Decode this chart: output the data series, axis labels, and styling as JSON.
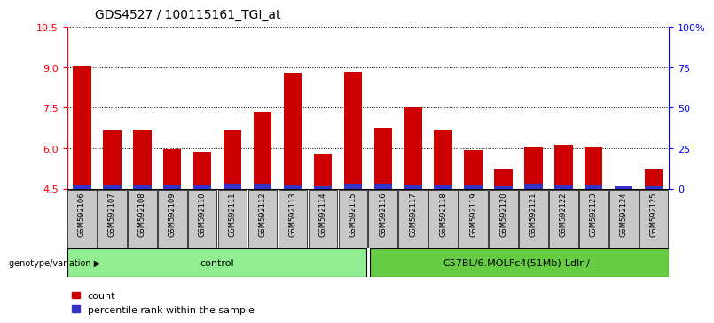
{
  "title": "GDS4527 / 100115161_TGI_at",
  "samples": [
    "GSM592106",
    "GSM592107",
    "GSM592108",
    "GSM592109",
    "GSM592110",
    "GSM592111",
    "GSM592112",
    "GSM592113",
    "GSM592114",
    "GSM592115",
    "GSM592116",
    "GSM592117",
    "GSM592118",
    "GSM592119",
    "GSM592120",
    "GSM592121",
    "GSM592122",
    "GSM592123",
    "GSM592124",
    "GSM592125"
  ],
  "red_values": [
    9.05,
    6.65,
    6.7,
    5.98,
    5.88,
    6.65,
    7.35,
    8.8,
    5.82,
    8.82,
    6.75,
    7.5,
    6.7,
    5.95,
    5.2,
    6.05,
    6.15,
    6.02,
    4.6,
    5.2
  ],
  "blue_values": [
    0.13,
    0.13,
    0.13,
    0.13,
    0.13,
    0.18,
    0.18,
    0.13,
    0.1,
    0.18,
    0.18,
    0.13,
    0.13,
    0.13,
    0.1,
    0.18,
    0.13,
    0.13,
    0.1,
    0.1
  ],
  "ylim_left": [
    4.5,
    10.5
  ],
  "yticks_left": [
    4.5,
    6.0,
    7.5,
    9.0,
    10.5
  ],
  "yticks_right": [
    0,
    25,
    50,
    75,
    100
  ],
  "yticklabels_right": [
    "0",
    "25",
    "50",
    "75",
    "100%"
  ],
  "bar_bottom": 4.5,
  "bar_color_red": "#cc0000",
  "bar_color_blue": "#3333cc",
  "n_control": 10,
  "n_treatment": 10,
  "control_label": "control",
  "treatment_label": "C57BL/6.MOLFc4(51Mb)-Ldlr-/-",
  "genotype_label": "genotype/variation",
  "legend_count": "count",
  "legend_pct": "percentile rank within the sample",
  "bg_control": "#90ee90",
  "bg_treatment": "#66cc44",
  "bar_color_left_spine": "red",
  "bar_color_right_spine": "blue",
  "title_fontsize": 10,
  "ytick_fontsize": 8,
  "sample_fontsize": 6,
  "legend_fontsize": 8
}
